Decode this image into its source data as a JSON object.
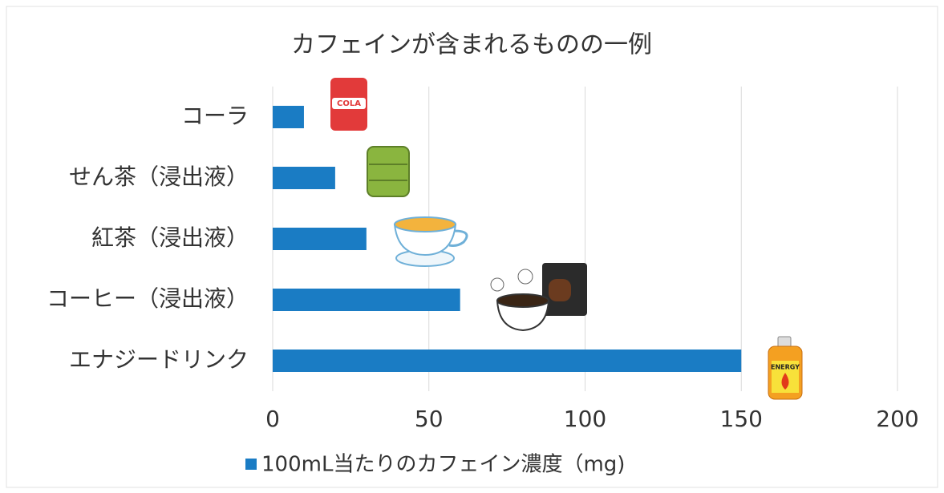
{
  "chart_data": {
    "type": "bar",
    "orientation": "horizontal",
    "title": "カフェインが含まれるものの一例",
    "categories": [
      "コーラ",
      "せん茶（浸出液）",
      "紅茶（浸出液）",
      "コーヒー（浸出液）",
      "エナジードリンク"
    ],
    "series": [
      {
        "name": "100mL当たりのカフェイン濃度（mg)",
        "color": "#1a7cc4",
        "values": [
          10,
          20,
          30,
          60,
          150
        ]
      }
    ],
    "xlim": [
      0,
      200
    ],
    "xticks": [
      0,
      50,
      100,
      150,
      200
    ],
    "grid": true,
    "legend": "bottom"
  }
}
